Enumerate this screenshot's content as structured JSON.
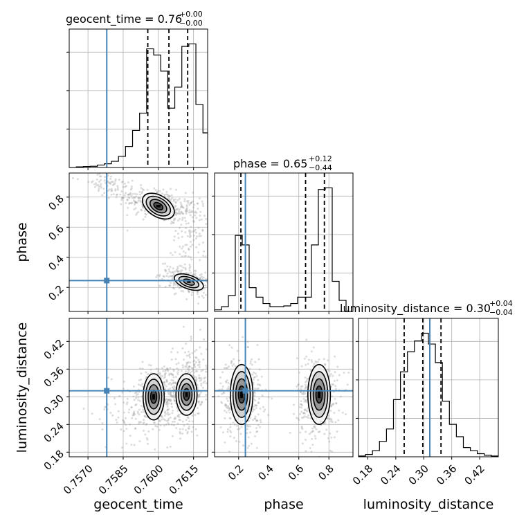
{
  "chart_data": {
    "type": "corner",
    "parameters": [
      "geocent_time",
      "phase",
      "luminosity_distance"
    ],
    "colors": {
      "truth": "#4682b4",
      "hist": "#000000",
      "grid": "#b0b0b0",
      "points": "#9a9a9a",
      "quantile": "#000000"
    },
    "panels": {
      "geocent_time": {
        "title": {
          "name": "geocent_time",
          "median": "0.76",
          "plus": "+0.00",
          "minus": "−0.00"
        },
        "xlim": [
          0.7562,
          0.7621
        ],
        "ticks": [
          "0.7570",
          "0.7585",
          "0.7600",
          "0.7615"
        ],
        "tick_values": [
          0.757,
          0.7585,
          0.76,
          0.7615
        ],
        "truth": 0.7578,
        "quantiles": [
          0.75955,
          0.76045,
          0.76125
        ],
        "hist": {
          "edges": [
            0.7562,
            0.7565,
            0.7568,
            0.7571,
            0.7574,
            0.7577,
            0.758,
            0.7583,
            0.7586,
            0.7589,
            0.7592,
            0.7595,
            0.7598,
            0.7601,
            0.7604,
            0.7607,
            0.761,
            0.7613,
            0.7616,
            0.7619,
            0.7621
          ],
          "counts": [
            0.0,
            0.005,
            0.008,
            0.01,
            0.02,
            0.03,
            0.05,
            0.09,
            0.17,
            0.3,
            0.44,
            0.96,
            0.91,
            0.78,
            0.48,
            0.65,
            0.98,
            1.0,
            0.51,
            0.28
          ]
        }
      },
      "phase": {
        "title": {
          "name": "phase",
          "median": "0.65",
          "plus": "+0.12",
          "minus": "−0.44"
        },
        "xlim": [
          0.04,
          0.96
        ],
        "ylim": [
          0.04,
          0.96
        ],
        "ticks": [
          "0.2",
          "0.4",
          "0.6",
          "0.8"
        ],
        "tick_values": [
          0.2,
          0.4,
          0.6,
          0.8
        ],
        "truth": 0.245,
        "quantiles": [
          0.215,
          0.645,
          0.77
        ],
        "hist": {
          "edges": [
            0.04,
            0.086,
            0.132,
            0.178,
            0.224,
            0.27,
            0.316,
            0.362,
            0.408,
            0.454,
            0.5,
            0.546,
            0.592,
            0.638,
            0.684,
            0.73,
            0.776,
            0.822,
            0.868,
            0.914,
            0.96
          ],
          "counts": [
            0.01,
            0.03,
            0.1,
            0.48,
            0.42,
            0.15,
            0.09,
            0.05,
            0.03,
            0.03,
            0.035,
            0.05,
            0.09,
            0.09,
            0.42,
            0.77,
            0.78,
            0.19,
            0.07,
            0.0
          ]
        }
      },
      "luminosity_distance": {
        "title": {
          "name": "luminosity_distance",
          "median": "0.30",
          "plus": "+0.04",
          "minus": "−0.04"
        },
        "xlim": [
          0.16,
          0.46
        ],
        "ylim": [
          0.17,
          0.47
        ],
        "ticks": [
          "0.18",
          "0.24",
          "0.30",
          "0.36",
          "0.42"
        ],
        "tick_values": [
          0.18,
          0.24,
          0.3,
          0.36,
          0.42
        ],
        "truth": 0.313,
        "quantiles": [
          0.258,
          0.298,
          0.337
        ],
        "hist": {
          "edges": [
            0.16,
            0.175,
            0.19,
            0.205,
            0.22,
            0.235,
            0.25,
            0.265,
            0.28,
            0.295,
            0.31,
            0.325,
            0.34,
            0.355,
            0.37,
            0.385,
            0.4,
            0.415,
            0.43,
            0.445,
            0.46
          ],
          "counts": [
            0.005,
            0.015,
            0.04,
            0.1,
            0.18,
            0.37,
            0.55,
            0.68,
            0.75,
            0.8,
            0.73,
            0.61,
            0.36,
            0.21,
            0.13,
            0.06,
            0.04,
            0.02,
            0.01,
            0.005
          ]
        }
      }
    },
    "axis_labels": {
      "x": [
        "geocent_time",
        "phase",
        "luminosity_distance"
      ],
      "y": [
        "phase",
        "luminosity_distance"
      ]
    },
    "scatter_clusters": {
      "time_phase": [
        {
          "cx": 0.76,
          "cy": 0.75,
          "sx": 0.00085,
          "sy": 0.065,
          "n": 340,
          "rho": -0.55
        },
        {
          "cx": 0.7612,
          "cy": 0.24,
          "sx": 0.00055,
          "sy": 0.05,
          "n": 230,
          "rho": -0.5
        },
        {
          "cx": 0.7614,
          "cy": 0.55,
          "sx": 0.00035,
          "sy": 0.14,
          "n": 110,
          "rho": 0.0
        },
        {
          "cx": 0.7578,
          "cy": 0.88,
          "sx": 0.0006,
          "sy": 0.04,
          "n": 60,
          "rho": 0.0
        }
      ],
      "time_distance": [
        {
          "cx": 0.76,
          "cy": 0.3,
          "sx": 0.00065,
          "sy": 0.04,
          "n": 330,
          "rho": 0.35
        },
        {
          "cx": 0.7613,
          "cy": 0.32,
          "sx": 0.00045,
          "sy": 0.045,
          "n": 330,
          "rho": 0.3
        },
        {
          "cx": 0.759,
          "cy": 0.27,
          "sx": 0.0009,
          "sy": 0.045,
          "n": 80,
          "rho": 0.0
        }
      ],
      "phase_distance": [
        {
          "cx": 0.22,
          "cy": 0.3,
          "sx": 0.07,
          "sy": 0.045,
          "n": 380,
          "rho": 0.0
        },
        {
          "cx": 0.73,
          "cy": 0.3,
          "sx": 0.07,
          "sy": 0.045,
          "n": 380,
          "rho": 0.0
        }
      ]
    },
    "density_blobs": {
      "time_phase": [
        {
          "cx": 0.76,
          "cy": 0.74,
          "rx": 0.00075,
          "ry": 0.07,
          "rot": 32,
          "levels": 4
        },
        {
          "cx": 0.7613,
          "cy": 0.235,
          "rx": 0.00065,
          "ry": 0.045,
          "rot": 20,
          "levels": 3
        }
      ],
      "time_distance": [
        {
          "cx": 0.7598,
          "cy": 0.3,
          "rx": 0.00045,
          "ry": 0.05,
          "rot": 0,
          "levels": 4
        },
        {
          "cx": 0.7612,
          "cy": 0.305,
          "rx": 0.00045,
          "ry": 0.045,
          "rot": 0,
          "levels": 4
        }
      ],
      "phase_distance": [
        {
          "cx": 0.22,
          "cy": 0.305,
          "rx": 0.075,
          "ry": 0.065,
          "rot": 0,
          "levels": 4
        },
        {
          "cx": 0.735,
          "cy": 0.305,
          "rx": 0.075,
          "ry": 0.065,
          "rot": 0,
          "levels": 4
        }
      ]
    }
  }
}
